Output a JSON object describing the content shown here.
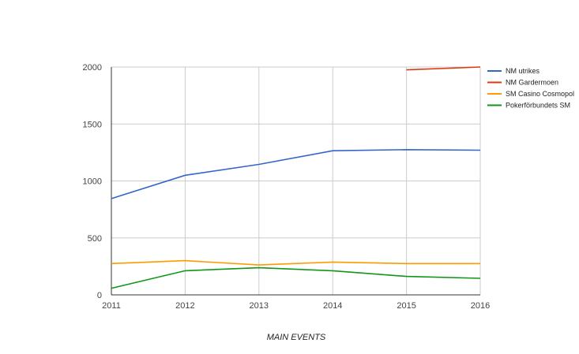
{
  "chart_data": {
    "type": "line",
    "x": [
      2011,
      2012,
      2013,
      2014,
      2015,
      2016
    ],
    "xlabel": "MAIN EVENTS",
    "ylabel": "",
    "ylim": [
      0,
      2000
    ],
    "yticks": [
      0,
      500,
      1000,
      1500,
      2000
    ],
    "grid": true,
    "legend_position": "right",
    "series": [
      {
        "name": "NM utrikes",
        "color": "#3366cc",
        "values": [
          845,
          1050,
          1145,
          1265,
          1275,
          1270
        ]
      },
      {
        "name": "NM Gardermoen",
        "color": "#dc3912",
        "values": [
          null,
          null,
          null,
          null,
          1975,
          2000
        ]
      },
      {
        "name": "SM Casino Cosmopol",
        "color": "#ff9900",
        "values": [
          275,
          300,
          262,
          288,
          275,
          275
        ]
      },
      {
        "name": "Pokerförbundets SM",
        "color": "#109618",
        "values": [
          58,
          212,
          238,
          212,
          162,
          145
        ]
      }
    ]
  }
}
